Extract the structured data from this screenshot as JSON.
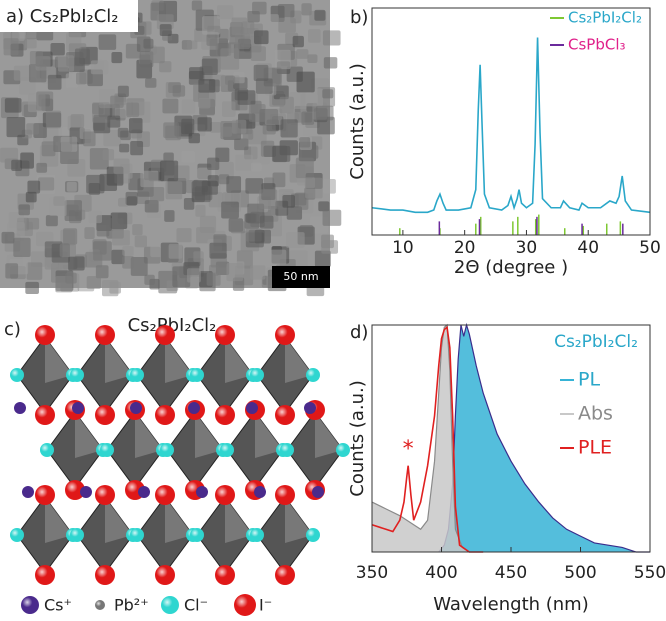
{
  "panels": {
    "a": {
      "label": "a) Cs₂PbI₂Cl₂",
      "scale_bar": "50 nm"
    },
    "c": {
      "label": "c)",
      "title": "Cs₂PbI₂Cl₂",
      "legend": [
        {
          "text": "Cs⁺",
          "color": "#4a2a8c"
        },
        {
          "text": "Pb²⁺",
          "color": "#777777"
        },
        {
          "text": "Cl⁻",
          "color": "#2fd6d0"
        },
        {
          "text": "I⁻",
          "color": "#e01818"
        }
      ]
    }
  },
  "chart_data": [
    {
      "type": "xrd",
      "panel_label": "b)",
      "xlabel": "2Θ (degree )",
      "ylabel": "Counts (a.u.)",
      "xlim": [
        5,
        50
      ],
      "xticks": [
        10,
        20,
        30,
        40,
        50
      ],
      "ylim": [
        0,
        100
      ],
      "series": [
        {
          "mark": "line",
          "color": "#2aa7c9",
          "x": [
            5,
            8,
            10,
            12,
            14,
            15,
            15.5,
            16,
            16.5,
            17,
            19,
            21,
            21.8,
            22.2,
            22.5,
            22.8,
            23.2,
            24,
            26,
            27,
            27.5,
            28,
            28.5,
            28.8,
            29.2,
            30,
            31,
            31.4,
            31.8,
            32.2,
            32.6,
            34,
            35.5,
            36,
            37,
            38.5,
            39,
            40,
            42,
            43.5,
            44.5,
            45,
            45.5,
            46,
            47,
            50
          ],
          "values": [
            12,
            11,
            11,
            10,
            10,
            11,
            15,
            18,
            14,
            11,
            11,
            12,
            20,
            55,
            75,
            50,
            18,
            12,
            11,
            13,
            17,
            12,
            16,
            20,
            14,
            12,
            14,
            40,
            87,
            45,
            16,
            12,
            12,
            15,
            12,
            11,
            14,
            12,
            12,
            15,
            14,
            17,
            26,
            15,
            11,
            10
          ]
        },
        {
          "mark": "stick",
          "name": "Cs₂PbI₂Cl₂",
          "color": "#7ec832",
          "label_color": "#2aa7c9",
          "x": [
            9.5,
            16,
            21.8,
            22.6,
            27.8,
            28.6,
            31.5,
            32,
            36.2,
            39.2,
            43,
            45.2
          ],
          "values": [
            3,
            3,
            5,
            8,
            6,
            8,
            7,
            9,
            3,
            4,
            5,
            6
          ]
        },
        {
          "mark": "stick",
          "name": "CsPbCl₃",
          "color": "#6a2a9c",
          "label_color": "#e0208a",
          "x": [
            15.9,
            22.4,
            31.7,
            39,
            45.6
          ],
          "values": [
            6,
            7,
            8,
            5,
            5
          ]
        }
      ]
    },
    {
      "type": "spectra",
      "panel_label": "d)",
      "title": "Cs₂PbI₂Cl₂",
      "title_color": "#2aa7c9",
      "xlabel": "Wavelength (nm)",
      "ylabel": "Counts (a.u.)",
      "xlim": [
        350,
        550
      ],
      "xticks": [
        350,
        400,
        450,
        500,
        550
      ],
      "ylim": [
        0,
        100
      ],
      "series": [
        {
          "mark": "area",
          "name": "PL",
          "color": "#36b3d6",
          "line_color": "#3a2d8c",
          "label_color": "#2aa7c9",
          "x": [
            398,
            402,
            405,
            408,
            410,
            412,
            414,
            416,
            418,
            420,
            425,
            430,
            440,
            450,
            460,
            470,
            480,
            490,
            500,
            510,
            520,
            530,
            540,
            550
          ],
          "values": [
            0,
            3,
            10,
            30,
            60,
            85,
            100,
            95,
            100,
            96,
            82,
            70,
            52,
            40,
            30,
            22,
            15,
            10,
            7,
            4,
            3,
            2,
            0,
            0
          ]
        },
        {
          "mark": "area",
          "name": "Abs",
          "color": "#c8c8c8",
          "line_color": "#8a8a8a",
          "label_color": "#8a8a8a",
          "x": [
            350,
            360,
            370,
            380,
            385,
            390,
            395,
            398,
            400,
            402,
            404,
            406,
            408,
            410,
            415,
            420
          ],
          "values": [
            22,
            19,
            16,
            12,
            10,
            14,
            40,
            70,
            90,
            99,
            100,
            80,
            40,
            10,
            2,
            0
          ]
        },
        {
          "mark": "line",
          "name": "PLE",
          "color": "#e02020",
          "label_color": "#e02020",
          "x": [
            350,
            360,
            365,
            370,
            373,
            375,
            376,
            378,
            380,
            385,
            390,
            395,
            398,
            400,
            402,
            404,
            406,
            408,
            410,
            413,
            420,
            430
          ],
          "values": [
            12,
            10,
            9,
            14,
            22,
            33,
            38,
            25,
            14,
            22,
            38,
            60,
            82,
            94,
            98,
            99,
            90,
            60,
            20,
            3,
            0,
            0
          ]
        }
      ],
      "annotations": [
        {
          "text": "*",
          "x": 376,
          "y": 45,
          "color": "#e02020"
        }
      ]
    }
  ]
}
